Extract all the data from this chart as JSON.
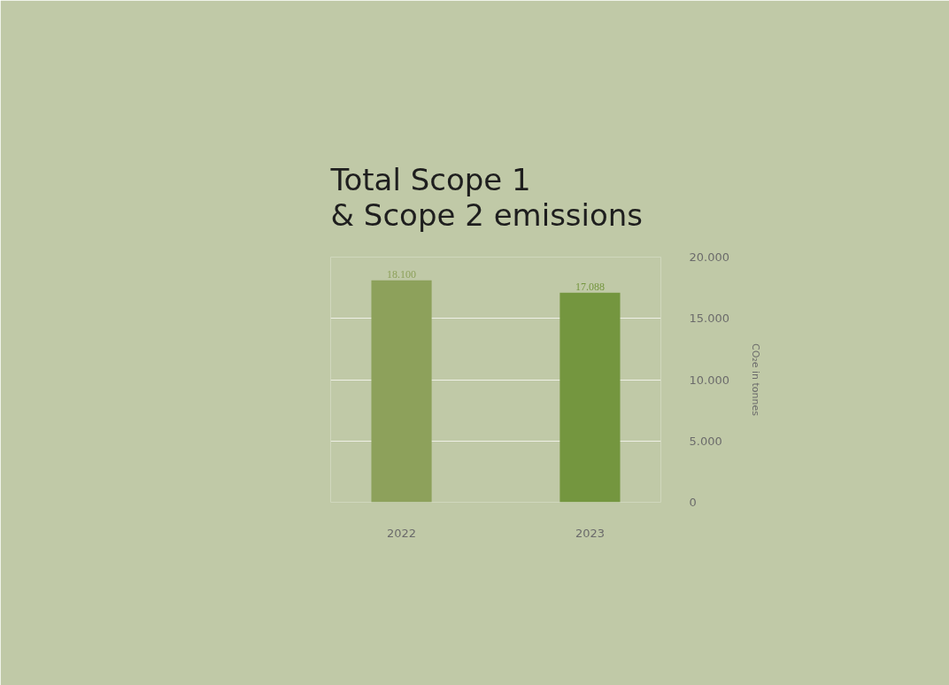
{
  "chart_data": {
    "type": "bar",
    "title": "Total Scope 1\n& Scope 2 emissions",
    "ylabel": "CO₂e in tonnes",
    "categories": [
      "2022",
      "2023"
    ],
    "values": [
      18100,
      17088
    ],
    "colors": [
      "#8da15b",
      "#74963f"
    ],
    "value_labels": [
      "18.100",
      "17.088"
    ],
    "ylim": [
      0,
      20000
    ],
    "yticks": [
      {
        "value": 0,
        "label": "0"
      },
      {
        "value": 5000,
        "label": "5.000"
      },
      {
        "value": 10000,
        "label": "10.000"
      },
      {
        "value": 15000,
        "label": "15.000"
      },
      {
        "value": 20000,
        "label": "20.000"
      }
    ],
    "grid": "y"
  }
}
